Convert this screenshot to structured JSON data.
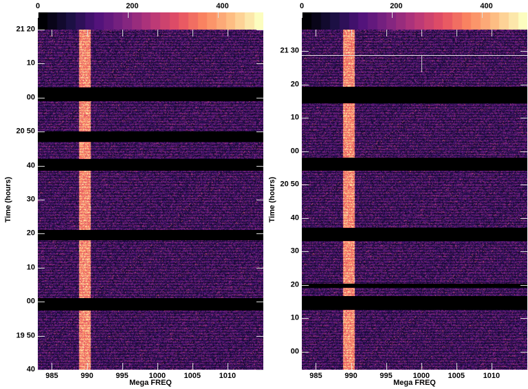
{
  "chart_data": [
    {
      "type": "heatmap",
      "xlabel": "Mega FREQ",
      "ylabel": "Time (hours)",
      "xlim": [
        983.0,
        1015.1
      ],
      "ylim": [
        "19:40",
        "21:20"
      ],
      "x_ticks": [
        985,
        990,
        995,
        1000,
        1005,
        1010
      ],
      "y_ticks": [
        {
          "t": "21:20",
          "label": "21 20"
        },
        {
          "t": "21:10",
          "label": "10"
        },
        {
          "t": "21:00",
          "label": "00"
        },
        {
          "t": "20:50",
          "label": "20 50"
        },
        {
          "t": "20:40",
          "label": "40"
        },
        {
          "t": "20:30",
          "label": "30"
        },
        {
          "t": "20:20",
          "label": "20"
        },
        {
          "t": "20:10",
          "label": "10"
        },
        {
          "t": "20:00",
          "label": "00"
        },
        {
          "t": "19:50",
          "label": "19 50"
        },
        {
          "t": "19:40",
          "label": "40"
        }
      ],
      "colorbar": {
        "range": [
          0,
          500
        ],
        "ticks": [
          0,
          200,
          400
        ],
        "colormap": "magma"
      },
      "no_data_gaps": [
        [
          "20:59",
          "21:03"
        ],
        [
          "20:47",
          "20:50"
        ],
        [
          "20:38.5",
          "20:42"
        ],
        [
          "20:18",
          "20:21"
        ],
        [
          "19:57.5",
          "20:01"
        ]
      ],
      "bright_feature_freq": [
        988.8,
        990.5
      ],
      "background_level": 120
    },
    {
      "type": "heatmap",
      "xlabel": "Mega FREQ",
      "ylabel": "Time (hours)",
      "xlim": [
        983.0,
        1015.1
      ],
      "ylim": [
        "19:54.6",
        "21:36.4"
      ],
      "x_ticks": [
        985,
        990,
        995,
        1000,
        1005,
        1010
      ],
      "y_ticks": [
        {
          "t": "21:30",
          "label": "21 30"
        },
        {
          "t": "21:20",
          "label": "20"
        },
        {
          "t": "21:10",
          "label": "10"
        },
        {
          "t": "21:00",
          "label": "00"
        },
        {
          "t": "20:50",
          "label": "20 50"
        },
        {
          "t": "20:40",
          "label": "40"
        },
        {
          "t": "20:30",
          "label": "30"
        },
        {
          "t": "20:20",
          "label": "20"
        },
        {
          "t": "20:10",
          "label": "10"
        },
        {
          "t": "20:00",
          "label": "00"
        }
      ],
      "colorbar": {
        "range": [
          0,
          500
        ],
        "ticks": [
          0,
          200,
          400
        ],
        "colormap": "magma"
      },
      "no_data_gaps": [
        [
          "21:14.4",
          "21:19.2"
        ],
        [
          "20:54.2",
          "20:58"
        ],
        [
          "20:33.2",
          "20:37"
        ],
        [
          "20:19.2",
          "20:20.4"
        ],
        [
          "20:12.6",
          "20:16.7"
        ]
      ],
      "bright_feature_freq": [
        988.8,
        990.5
      ],
      "background_level": 120
    }
  ]
}
